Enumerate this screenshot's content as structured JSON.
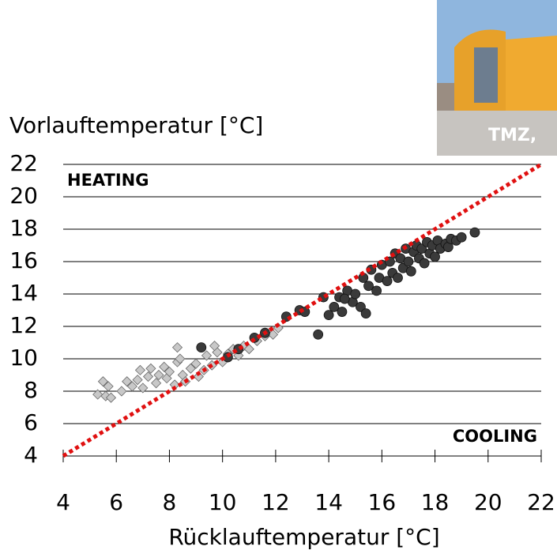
{
  "chart_data": {
    "type": "scatter",
    "x_label": "Rücklauftemperatur [°C]",
    "y_label": "Vorlauftemperatur [°C]",
    "annotations": [
      "HEATING",
      "COOLING"
    ],
    "xlim": [
      4,
      22
    ],
    "ylim": [
      4,
      22
    ],
    "xticks": [
      4,
      6,
      8,
      10,
      12,
      14,
      16,
      18,
      20,
      22
    ],
    "yticks": [
      4,
      6,
      8,
      10,
      12,
      14,
      16,
      18,
      20,
      22
    ],
    "grid": true,
    "diagonal": {
      "x": [
        4,
        22
      ],
      "y": [
        4,
        22
      ],
      "color": "#e01010"
    },
    "series": [
      {
        "color": "#c8c8c8",
        "marker": "diamond",
        "x": [
          5.3,
          5.5,
          5.6,
          5.8,
          5.7,
          6.2,
          6.4,
          6.6,
          6.8,
          7.0,
          7.2,
          7.3,
          7.5,
          7.6,
          7.8,
          7.9,
          8.0,
          8.2,
          8.3,
          8.4,
          8.5,
          8.6,
          8.8,
          9.0,
          9.1,
          9.3,
          9.4,
          9.6,
          9.8,
          10.0,
          10.2,
          10.4,
          10.6,
          10.8,
          11.0,
          11.3,
          11.6,
          11.9,
          12.1,
          8.3,
          6.9,
          9.7
        ],
        "values": [
          7.8,
          8.6,
          7.7,
          7.6,
          8.3,
          8.0,
          8.6,
          8.3,
          8.7,
          8.2,
          8.9,
          9.4,
          8.5,
          9.0,
          9.5,
          8.8,
          9.2,
          8.4,
          9.8,
          10.0,
          9.0,
          8.6,
          9.4,
          9.7,
          8.9,
          9.3,
          10.2,
          9.6,
          10.4,
          9.8,
          10.3,
          10.6,
          10.2,
          10.8,
          10.6,
          11.1,
          11.4,
          11.5,
          11.9,
          10.7,
          9.3,
          10.8
        ]
      },
      {
        "color": "#3a3a3a",
        "marker": "circle",
        "x": [
          9.2,
          10.2,
          10.6,
          11.2,
          11.6,
          12.4,
          12.9,
          13.6,
          13.8,
          14.0,
          14.2,
          14.4,
          14.5,
          14.7,
          14.9,
          15.0,
          15.2,
          15.3,
          15.5,
          15.6,
          15.8,
          15.9,
          16.0,
          16.2,
          16.3,
          16.4,
          16.5,
          16.6,
          16.7,
          16.8,
          16.9,
          17.0,
          17.1,
          17.2,
          17.3,
          17.4,
          17.5,
          17.6,
          17.7,
          17.8,
          17.9,
          18.0,
          18.1,
          18.2,
          18.4,
          18.5,
          18.6,
          18.8,
          19.0,
          19.5,
          13.1,
          14.6,
          15.4
        ],
        "values": [
          10.7,
          10.1,
          10.6,
          11.3,
          11.6,
          12.6,
          13.0,
          11.5,
          13.8,
          12.7,
          13.2,
          13.8,
          12.9,
          14.2,
          13.5,
          14.0,
          13.2,
          15.0,
          14.5,
          15.5,
          14.2,
          15.0,
          15.8,
          14.8,
          16.0,
          15.3,
          16.5,
          15.0,
          16.2,
          15.6,
          16.8,
          16.0,
          15.4,
          16.6,
          17.0,
          16.2,
          16.8,
          15.9,
          17.2,
          16.5,
          17.0,
          16.3,
          17.3,
          16.8,
          17.1,
          16.9,
          17.4,
          17.3,
          17.5,
          17.8,
          12.9,
          13.7,
          12.8
        ]
      }
    ]
  },
  "photo": {
    "caption": "TMZ,"
  }
}
